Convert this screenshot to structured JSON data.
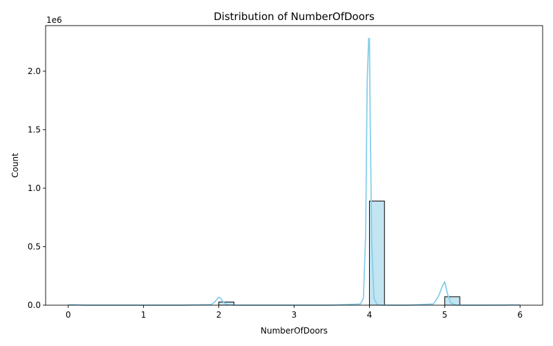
{
  "chart_data": {
    "type": "bar",
    "title": "Distribution of NumberOfDoors",
    "xlabel": "NumberOfDoors",
    "ylabel": "Count",
    "y_offset_label": "1e6",
    "xlim": [
      -0.3,
      6.3
    ],
    "ylim": [
      0,
      2.39
    ],
    "x_ticks": [
      0,
      1,
      2,
      3,
      4,
      5,
      6
    ],
    "y_ticks": [
      0.0,
      0.5,
      1.0,
      1.5,
      2.0
    ],
    "y_tick_labels": [
      "0.0",
      "0.5",
      "1.0",
      "1.5",
      "2.0"
    ],
    "y_unit_multiplier": 1000000,
    "bars": [
      {
        "x0": 0.0,
        "x1": 0.2,
        "value": 0.0005
      },
      {
        "x0": 2.0,
        "x1": 2.2,
        "value": 0.027
      },
      {
        "x0": 4.0,
        "x1": 4.2,
        "value": 0.89
      },
      {
        "x0": 5.0,
        "x1": 5.2,
        "value": 0.072
      },
      {
        "x0": 5.8,
        "x1": 6.0,
        "value": 0.0003
      }
    ],
    "kde": {
      "x": [
        0.0,
        0.05,
        0.1,
        0.15,
        0.2,
        0.4,
        1.0,
        1.5,
        1.9,
        1.95,
        1.98,
        2.0,
        2.02,
        2.05,
        2.1,
        2.2,
        3.0,
        3.5,
        3.88,
        3.92,
        3.95,
        3.97,
        3.99,
        4.0,
        4.01,
        4.03,
        4.06,
        4.1,
        4.15,
        4.5,
        4.85,
        4.92,
        4.96,
        4.99,
        5.0,
        5.01,
        5.04,
        5.08,
        5.15,
        5.5,
        5.8,
        5.9,
        5.95,
        6.0
      ],
      "y": [
        0.003,
        0.004,
        0.003,
        0.002,
        0.0,
        0.0,
        0.0,
        0.0,
        0.005,
        0.03,
        0.055,
        0.068,
        0.062,
        0.035,
        0.005,
        0.0,
        0.0,
        0.0,
        0.01,
        0.06,
        0.6,
        1.9,
        2.28,
        2.28,
        1.6,
        0.55,
        0.06,
        0.005,
        0.0,
        0.0,
        0.01,
        0.08,
        0.15,
        0.19,
        0.2,
        0.17,
        0.09,
        0.02,
        0.0,
        0.0,
        0.001,
        0.003,
        0.002,
        0.003
      ]
    },
    "colors": {
      "bar_fill": "#c3e4f1",
      "bar_edge": "#000000",
      "kde_line": "#87ceeb"
    },
    "grid": false,
    "legend": "none"
  }
}
